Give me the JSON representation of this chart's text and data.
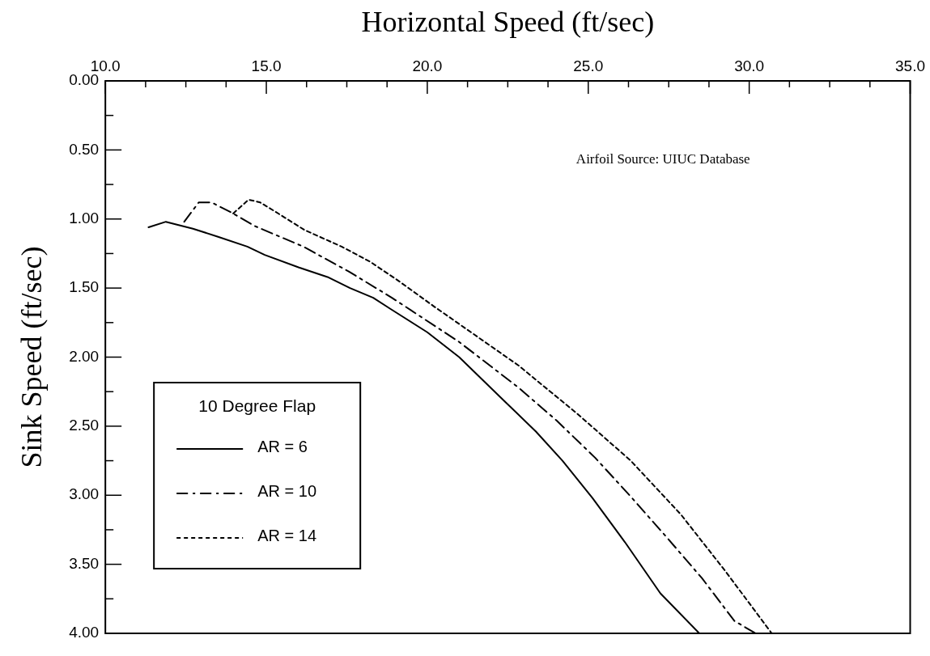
{
  "chart_data": {
    "type": "line",
    "xlabel": "Horizontal Speed (ft/sec)",
    "ylabel": "Sink Speed (ft/sec)",
    "legend_title": "10 Degree Flap",
    "legend": "bottom left",
    "grid": false,
    "marker": "none",
    "annotations": [
      "Airfoil Source: UIUC Database"
    ],
    "xlim": [
      10,
      35
    ],
    "xticks": [
      {
        "value": 10,
        "label": "10.0"
      },
      {
        "value": 11.25,
        "label": null
      },
      {
        "value": 12.5,
        "label": null
      },
      {
        "value": 13.75,
        "label": null
      },
      {
        "value": 15,
        "label": "15.0"
      },
      {
        "value": 16.25,
        "label": null
      },
      {
        "value": 17.5,
        "label": null
      },
      {
        "value": 18.75,
        "label": null
      },
      {
        "value": 20,
        "label": "20.0"
      },
      {
        "value": 21.25,
        "label": null
      },
      {
        "value": 22.5,
        "label": null
      },
      {
        "value": 23.75,
        "label": null
      },
      {
        "value": 25,
        "label": "25.0"
      },
      {
        "value": 26.25,
        "label": null
      },
      {
        "value": 27.5,
        "label": null
      },
      {
        "value": 28.75,
        "label": null
      },
      {
        "value": 30,
        "label": "30.0"
      },
      {
        "value": 31.25,
        "label": null
      },
      {
        "value": 32.5,
        "label": null
      },
      {
        "value": 33.75,
        "label": null
      },
      {
        "value": 35,
        "label": "35.0"
      }
    ],
    "ylim": [
      4,
      0
    ],
    "yticks": [
      {
        "value": 0,
        "label": "0.00"
      },
      {
        "value": 0.25,
        "label": null
      },
      {
        "value": 0.5,
        "label": "0.50"
      },
      {
        "value": 0.75,
        "label": null
      },
      {
        "value": 1,
        "label": "1.00"
      },
      {
        "value": 1.25,
        "label": null
      },
      {
        "value": 1.5,
        "label": "1.50"
      },
      {
        "value": 1.75,
        "label": null
      },
      {
        "value": 2,
        "label": "2.00"
      },
      {
        "value": 2.25,
        "label": null
      },
      {
        "value": 2.5,
        "label": "2.50"
      },
      {
        "value": 2.75,
        "label": null
      },
      {
        "value": 3,
        "label": "3.00"
      },
      {
        "value": 3.25,
        "label": null
      },
      {
        "value": 3.5,
        "label": "3.50"
      },
      {
        "value": 3.75,
        "label": null
      },
      {
        "value": 4,
        "label": "4.00"
      }
    ],
    "series": [
      {
        "name": "AR = 6",
        "color": "#000000",
        "line_style": "solid",
        "x": [
          11.34,
          11.88,
          12.72,
          13.52,
          14.41,
          14.95,
          16.0,
          16.9,
          17.6,
          18.32,
          18.85,
          20.0,
          20.99,
          22.36,
          23.38,
          24.2,
          25.13,
          26.14,
          27.24,
          28.45
        ],
        "values": [
          1.06,
          1.02,
          1.07,
          1.13,
          1.2,
          1.26,
          1.35,
          1.42,
          1.5,
          1.57,
          1.65,
          1.82,
          2.0,
          2.31,
          2.54,
          2.75,
          3.02,
          3.34,
          3.71,
          4.0
        ]
      },
      {
        "name": "AR = 10",
        "color": "#000000",
        "line_style": "dashed",
        "x": [
          12.45,
          12.9,
          13.3,
          13.97,
          14.63,
          16.15,
          17.56,
          18.9,
          20.99,
          22.83,
          24.02,
          25.22,
          26.32,
          27.42,
          28.53,
          29.54,
          30.2
        ],
        "values": [
          1.02,
          0.88,
          0.88,
          0.96,
          1.05,
          1.2,
          1.38,
          1.57,
          1.89,
          2.22,
          2.46,
          2.73,
          3.01,
          3.3,
          3.6,
          3.91,
          4.0
        ]
      },
      {
        "name": "AR = 14",
        "color": "#000000",
        "line_style": "dotted",
        "x": [
          13.97,
          14.45,
          14.81,
          15.3,
          16.19,
          17.34,
          18.23,
          19.12,
          20.19,
          20.99,
          22.83,
          24.66,
          26.32,
          27.88,
          29.26,
          30.7
        ],
        "values": [
          0.96,
          0.86,
          0.88,
          0.95,
          1.08,
          1.2,
          1.31,
          1.45,
          1.63,
          1.76,
          2.06,
          2.41,
          2.75,
          3.14,
          3.55,
          4.0
        ]
      }
    ]
  }
}
